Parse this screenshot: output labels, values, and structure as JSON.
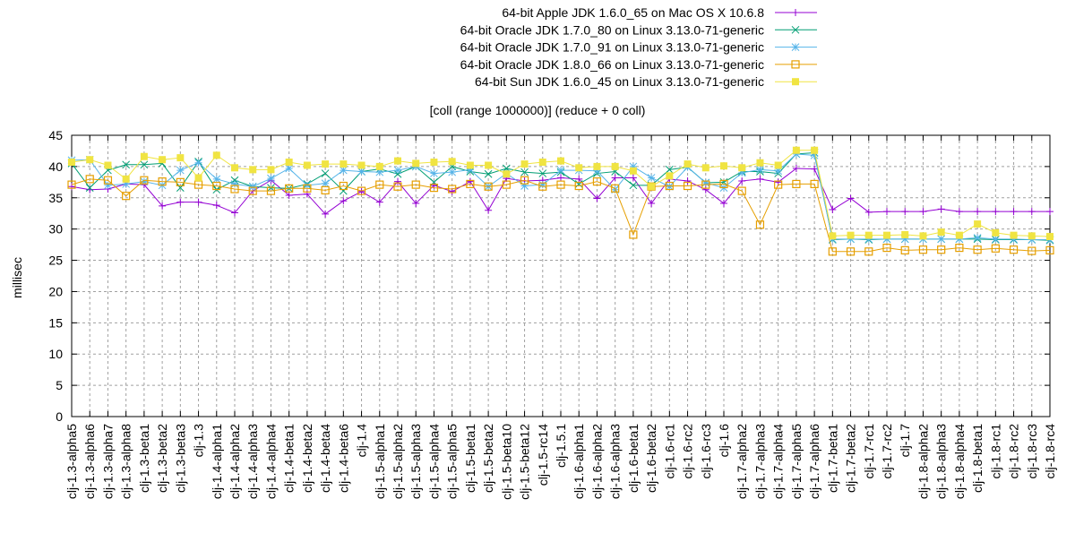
{
  "chart_data": {
    "type": "line",
    "title": "[coll (range 1000000)] (reduce + 0 coll)",
    "xlabel": "",
    "ylabel": "millisec",
    "ylim": [
      0,
      45
    ],
    "yticks": [
      0,
      5,
      10,
      15,
      20,
      25,
      30,
      35,
      40,
      45
    ],
    "grid": true,
    "legend_position": "top-right",
    "categories": [
      "clj-1.3-alpha5",
      "clj-1.3-alpha6",
      "clj-1.3-alpha7",
      "clj-1.3-alpha8",
      "clj-1.3-beta1",
      "clj-1.3-beta2",
      "clj-1.3-beta3",
      "clj-1.3",
      "clj-1.4-alpha1",
      "clj-1.4-alpha2",
      "clj-1.4-alpha3",
      "clj-1.4-alpha4",
      "clj-1.4-beta1",
      "clj-1.4-beta2",
      "clj-1.4-beta4",
      "clj-1.4-beta6",
      "clj-1.4",
      "clj-1.5-alpha1",
      "clj-1.5-alpha2",
      "clj-1.5-alpha3",
      "clj-1.5-alpha4",
      "clj-1.5-alpha5",
      "clj-1.5-beta1",
      "clj-1.5-beta2",
      "clj-1.5-beta10",
      "clj-1.5-beta12",
      "clj-1.5-rc14",
      "clj-1.5.1",
      "clj-1.6-alpha1",
      "clj-1.6-alpha2",
      "clj-1.6-alpha3",
      "clj-1.6-beta1",
      "clj-1.6-beta2",
      "clj-1.6-rc1",
      "clj-1.6-rc2",
      "clj-1.6-rc3",
      "clj-1.6",
      "clj-1.7-alpha2",
      "clj-1.7-alpha3",
      "clj-1.7-alpha4",
      "clj-1.7-alpha5",
      "clj-1.7-alpha6",
      "clj-1.7-beta1",
      "clj-1.7-beta2",
      "clj-1.7-rc1",
      "clj-1.7-rc2",
      "clj-1.7",
      "clj-1.8-alpha2",
      "clj-1.8-alpha3",
      "clj-1.8-alpha4",
      "clj-1.8-beta1",
      "clj-1.8-rc1",
      "clj-1.8-rc2",
      "clj-1.8-rc3",
      "clj-1.8-rc4"
    ],
    "series": [
      {
        "name": "64-bit Apple JDK 1.6.0_65 on Mac OS X 10.6.8",
        "color": "#9400d3",
        "marker": "plus",
        "values": [
          36.8,
          36.3,
          36.4,
          37.2,
          37.1,
          33.7,
          34.3,
          34.3,
          33.8,
          32.6,
          36.1,
          37.8,
          35.4,
          35.6,
          32.4,
          34.5,
          36.0,
          34.3,
          37.6,
          34.1,
          37.0,
          36.0,
          37.6,
          33.0,
          38.1,
          37.7,
          37.8,
          38.2,
          38.0,
          34.9,
          38.2,
          38.2,
          34.1,
          38.0,
          37.7,
          36.3,
          34.1,
          37.7,
          38.0,
          37.5,
          39.7,
          39.6,
          33.1,
          34.9,
          32.7,
          32.8,
          32.8,
          32.8,
          33.2,
          32.8,
          32.8,
          32.8,
          32.8,
          32.8,
          32.8
        ]
      },
      {
        "name": "64-bit Oracle JDK 1.7.0_80 on Linux 3.13.0-71-generic",
        "color": "#009e73",
        "marker": "cross",
        "values": [
          40.5,
          36.6,
          39.4,
          40.3,
          40.3,
          40.5,
          36.6,
          40.8,
          36.3,
          37.8,
          36.8,
          36.6,
          36.5,
          37.2,
          38.9,
          36.1,
          39.2,
          39.6,
          38.8,
          40.0,
          37.5,
          40.0,
          39.2,
          38.8,
          39.7,
          39.1,
          38.9,
          39.1,
          37.2,
          38.9,
          39.2,
          37.0,
          37.0,
          39.5,
          39.9,
          37.4,
          37.5,
          39.2,
          39.2,
          38.9,
          42.0,
          42.2,
          28.3,
          28.4,
          28.3,
          28.4,
          28.4,
          28.4,
          28.4,
          28.4,
          28.4,
          28.3,
          28.3,
          28.3,
          28.2
        ]
      },
      {
        "name": "64-bit Oracle JDK 1.7.0_91 on Linux 3.13.0-71-generic",
        "color": "#56b4e9",
        "marker": "star",
        "values": [
          41.0,
          41.1,
          37.0,
          37.2,
          37.6,
          37.0,
          39.4,
          40.6,
          38.0,
          37.2,
          36.8,
          38.1,
          39.7,
          37.0,
          37.3,
          39.4,
          39.2,
          39.1,
          39.4,
          40.0,
          38.9,
          39.1,
          39.5,
          36.8,
          38.9,
          36.9,
          37.1,
          39.4,
          39.4,
          39.3,
          36.3,
          40.0,
          38.2,
          36.8,
          39.9,
          37.4,
          36.6,
          39.0,
          39.5,
          39.3,
          42.0,
          41.8,
          28.4,
          28.4,
          28.4,
          28.4,
          28.4,
          28.4,
          28.4,
          28.4,
          28.6,
          28.4,
          28.4,
          28.3,
          28.3
        ]
      },
      {
        "name": "64-bit Oracle JDK 1.8.0_66 on Linux 3.13.0-71-generic",
        "color": "#e69f00",
        "marker": "open-square",
        "values": [
          37.1,
          38.0,
          37.8,
          35.3,
          37.8,
          37.6,
          37.5,
          37.1,
          36.9,
          36.4,
          36.1,
          36.1,
          36.5,
          36.5,
          36.2,
          36.9,
          36.1,
          37.1,
          36.8,
          37.1,
          36.6,
          36.4,
          37.2,
          36.8,
          37.1,
          37.8,
          36.8,
          37.1,
          36.9,
          37.6,
          36.5,
          29.1,
          36.8,
          36.9,
          36.9,
          37.1,
          37.2,
          36.1,
          30.7,
          37.1,
          37.2,
          37.2,
          26.4,
          26.4,
          26.4,
          27.0,
          26.6,
          26.7,
          26.7,
          27.0,
          26.7,
          26.9,
          26.7,
          26.5,
          26.6
        ]
      },
      {
        "name": "64-bit Sun JDK 1.6.0_45 on Linux 3.13.0-71-generic",
        "color": "#f0e442",
        "marker": "filled-square",
        "values": [
          40.7,
          41.1,
          40.2,
          38.0,
          41.6,
          41.1,
          41.4,
          38.2,
          41.8,
          39.8,
          39.5,
          39.5,
          40.7,
          40.2,
          40.4,
          40.4,
          40.2,
          40.0,
          40.9,
          40.5,
          40.7,
          40.8,
          40.2,
          40.2,
          38.8,
          40.4,
          40.7,
          40.9,
          39.8,
          40.0,
          40.0,
          39.3,
          36.8,
          38.5,
          40.4,
          39.8,
          40.1,
          39.8,
          40.6,
          40.2,
          42.6,
          42.6,
          28.9,
          29.0,
          29.0,
          29.0,
          29.1,
          28.9,
          29.5,
          29.0,
          30.8,
          29.4,
          29.0,
          28.9,
          28.8
        ]
      }
    ]
  }
}
